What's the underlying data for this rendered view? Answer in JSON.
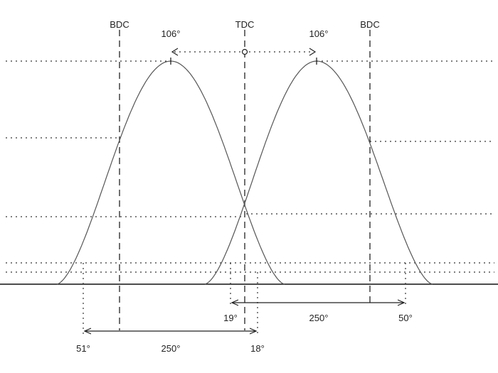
{
  "labels": {
    "bdc_left": "BDC",
    "tdc": "TDC",
    "bdc_right": "BDC",
    "peak_left": "106°",
    "peak_right": "106°",
    "upper_open_before_tdc": "19°",
    "upper_duration": "250°",
    "upper_close_after_bdc": "50°",
    "lower_open_before_bdc": "51°",
    "lower_duration": "250°",
    "lower_close_after_tdc": "18°"
  }
}
